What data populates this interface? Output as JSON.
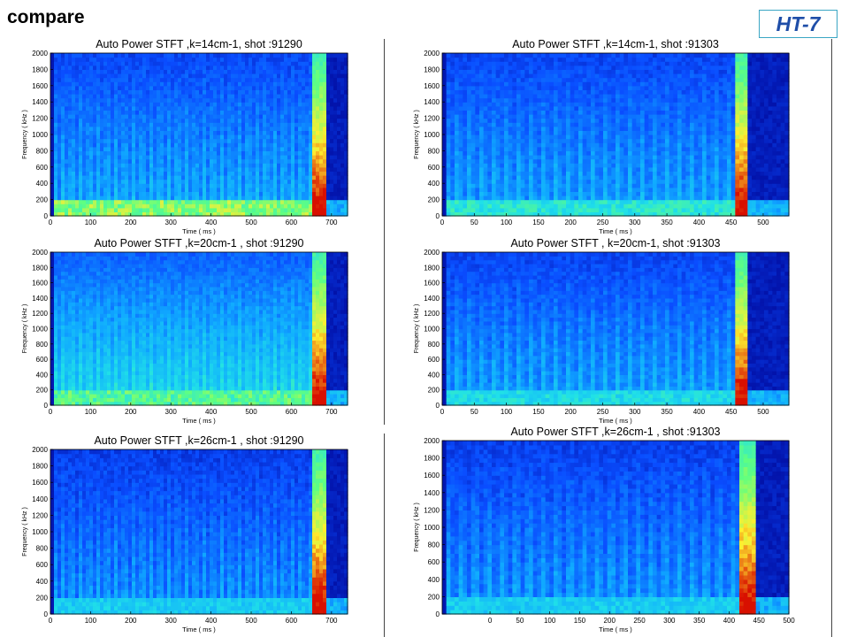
{
  "slide": {
    "title": "compare",
    "logo_text": "HT-7"
  },
  "colors": {
    "low": "#00008f",
    "mid_low": "#0a4dff",
    "mid": "#10aaff",
    "cyan": "#20e0e8",
    "green": "#60ff80",
    "yellow": "#ffef30",
    "red": "#d81000"
  },
  "chart_data": [
    {
      "type": "heatmap",
      "title": "Auto Power STFT  ,k=14cm-1,  shot :91290",
      "xlabel": "Time  ( ms )",
      "ylabel": "Frequency  ( kHz )",
      "xlim": [
        0,
        740
      ],
      "ylim": [
        0,
        2000
      ],
      "xticks": [
        0,
        100,
        200,
        300,
        400,
        500,
        600,
        700
      ],
      "yticks": [
        0,
        200,
        400,
        600,
        800,
        1000,
        1200,
        1400,
        1600,
        1800,
        2000
      ],
      "plasma_start_ms": 10,
      "disruption_ms": 668,
      "base_intensity": 0.32,
      "low_freq_intensity": 0.8,
      "stripe_count": 30
    },
    {
      "type": "heatmap",
      "title": "Auto Power STFT  ,k=14cm-1,  shot :91303",
      "xlabel": "Time  ( ms )",
      "ylabel": "Frequency  ( kHz )",
      "xlim": [
        0,
        540
      ],
      "ylim": [
        0,
        2000
      ],
      "xticks": [
        0,
        50,
        100,
        150,
        200,
        250,
        300,
        350,
        400,
        450,
        500
      ],
      "yticks": [
        0,
        200,
        400,
        600,
        800,
        1000,
        1200,
        1400,
        1600,
        1800,
        2000
      ],
      "plasma_start_ms": 5,
      "disruption_ms": 465,
      "base_intensity": 0.3,
      "low_freq_intensity": 0.6,
      "stripe_count": 24
    },
    {
      "type": "heatmap",
      "title": "Auto Power STFT  ,k=20cm-1 ,  shot :91290",
      "xlabel": "Time  ( ms )",
      "ylabel": "Frequency  ( kHz )",
      "xlim": [
        0,
        740
      ],
      "ylim": [
        0,
        2000
      ],
      "xticks": [
        0,
        100,
        200,
        300,
        400,
        500,
        600,
        700
      ],
      "yticks": [
        0,
        200,
        400,
        600,
        800,
        1000,
        1200,
        1400,
        1600,
        1800,
        2000
      ],
      "plasma_start_ms": 10,
      "disruption_ms": 668,
      "base_intensity": 0.45,
      "low_freq_intensity": 0.72,
      "stripe_count": 30
    },
    {
      "type": "heatmap",
      "title": "Auto Power STFT   , k=20cm-1,  shot :91303",
      "xlabel": "Time  ( ms )",
      "ylabel": "Frequency  ( kHz )",
      "xlim": [
        0,
        540
      ],
      "ylim": [
        0,
        2000
      ],
      "xticks": [
        0,
        50,
        100,
        150,
        200,
        250,
        300,
        350,
        400,
        450,
        500
      ],
      "yticks": [
        0,
        200,
        400,
        600,
        800,
        1000,
        1200,
        1400,
        1600,
        1800,
        2000
      ],
      "plasma_start_ms": 5,
      "disruption_ms": 465,
      "base_intensity": 0.3,
      "low_freq_intensity": 0.55,
      "stripe_count": 24
    },
    {
      "type": "heatmap",
      "title": "Auto Power STFT  ,k=26cm-1 ,  shot :91290",
      "xlabel": "Time  ( ms )",
      "ylabel": "Frequency  ( kHz )",
      "xlim": [
        0,
        740
      ],
      "ylim": [
        0,
        2000
      ],
      "xticks": [
        0,
        100,
        200,
        300,
        400,
        500,
        600,
        700
      ],
      "yticks": [
        0,
        200,
        400,
        600,
        800,
        1000,
        1200,
        1400,
        1600,
        1800,
        2000
      ],
      "plasma_start_ms": 10,
      "disruption_ms": 668,
      "base_intensity": 0.26,
      "low_freq_intensity": 0.5,
      "stripe_count": 30
    },
    {
      "type": "heatmap",
      "title": "Auto Power STFT  ,k=26cm-1 ,  shot :91303",
      "xlabel": "Time  ( ms )",
      "ylabel": "Frequency  ( kHz )",
      "xlim": [
        -80,
        500
      ],
      "ylim": [
        0,
        2000
      ],
      "xticks": [
        0,
        50,
        100,
        150,
        200,
        250,
        300,
        350,
        400,
        450,
        500
      ],
      "yticks": [
        0,
        200,
        400,
        600,
        800,
        1000,
        1200,
        1400,
        1600,
        1800,
        2000
      ],
      "plasma_start_ms": -70,
      "disruption_ms": 430,
      "base_intensity": 0.27,
      "low_freq_intensity": 0.5,
      "stripe_count": 22
    }
  ]
}
